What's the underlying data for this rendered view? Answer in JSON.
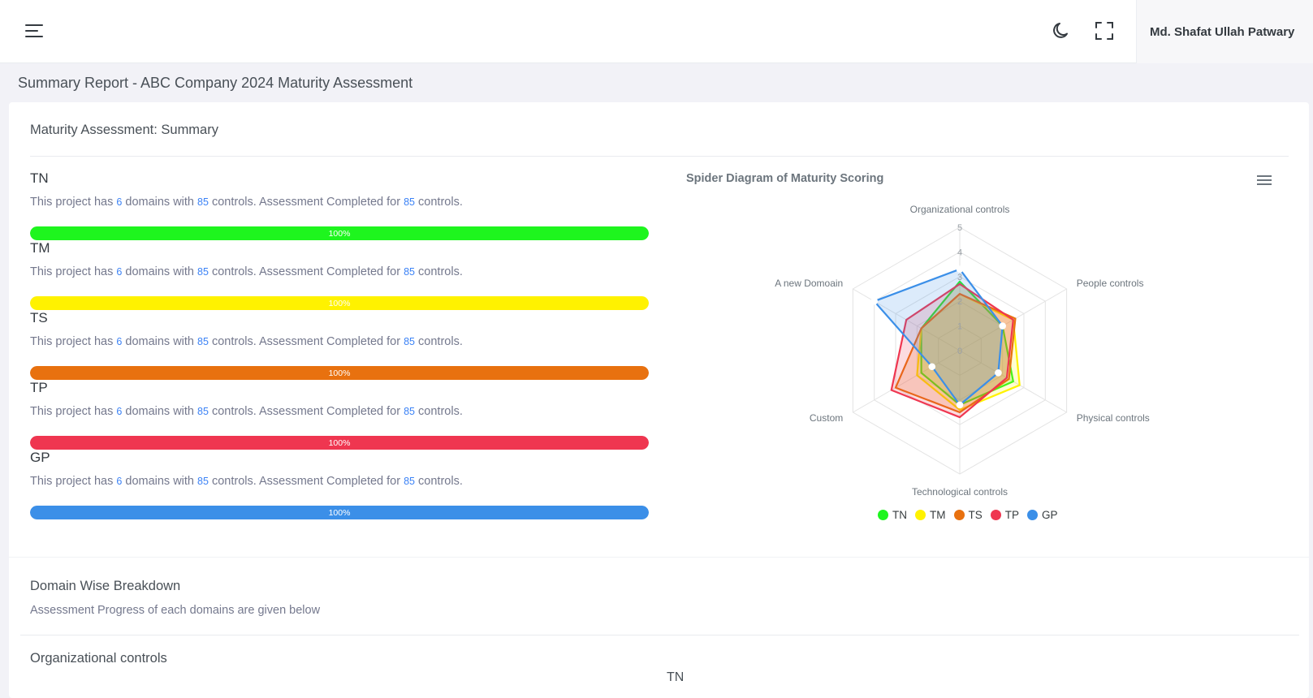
{
  "header": {
    "menu_icon": "hamburger-icon",
    "theme_icon": "moon-icon",
    "fullscreen_icon": "fullscreen-icon",
    "user_name": "Md. Shafat Ullah Patwary"
  },
  "page": {
    "title": "Summary Report - ABC Company 2024 Maturity Assessment"
  },
  "summary": {
    "card_title": "Maturity Assessment: Summary",
    "desc_prefix": "This project has",
    "desc_mid1": "domains with",
    "desc_mid2": "controls. Assessment Completed for",
    "desc_suffix": "controls.",
    "items": [
      {
        "code": "TN",
        "domains": "6",
        "controls": "85",
        "completed": "85",
        "progress": 100,
        "progress_label": "100%",
        "color": "#1ef51e"
      },
      {
        "code": "TM",
        "domains": "6",
        "controls": "85",
        "completed": "85",
        "progress": 100,
        "progress_label": "100%",
        "color": "#fff200"
      },
      {
        "code": "TS",
        "domains": "6",
        "controls": "85",
        "completed": "85",
        "progress": 100,
        "progress_label": "100%",
        "color": "#e8710f"
      },
      {
        "code": "TP",
        "domains": "6",
        "controls": "85",
        "completed": "85",
        "progress": 100,
        "progress_label": "100%",
        "color": "#ef3650"
      },
      {
        "code": "GP",
        "domains": "6",
        "controls": "85",
        "completed": "85",
        "progress": 100,
        "progress_label": "100%",
        "color": "#3b8fe8"
      }
    ]
  },
  "chart_title": "Spider Diagram of Maturity Scoring",
  "chart_menu_icon": "hamburger-icon",
  "chart_data": {
    "type": "radar",
    "title": "Spider Diagram of Maturity Scoring",
    "categories": [
      "Organizational controls",
      "People controls",
      "Physical controls",
      "Technological controls",
      "Custom",
      "A new Domoain"
    ],
    "scale_labels": [
      "0",
      "1",
      "2",
      "3",
      "4",
      "5"
    ],
    "ylim": [
      0,
      5
    ],
    "legend_position": "bottom",
    "series": [
      {
        "name": "TN",
        "color": "#1ef51e",
        "values": [
          2.8,
          2.0,
          2.5,
          2.2,
          1.8,
          1.8
        ]
      },
      {
        "name": "TM",
        "color": "#fff200",
        "values": [
          2.3,
          2.5,
          2.8,
          2.4,
          2.0,
          1.8
        ]
      },
      {
        "name": "TS",
        "color": "#e8710f",
        "values": [
          2.3,
          2.6,
          2.3,
          2.5,
          3.0,
          1.8
        ]
      },
      {
        "name": "TP",
        "color": "#ef3650",
        "values": [
          2.7,
          2.5,
          2.2,
          2.7,
          3.2,
          2.5
        ]
      },
      {
        "name": "GP",
        "color": "#3b8fe8",
        "values": [
          3.3,
          2.0,
          1.8,
          2.2,
          1.3,
          4.0
        ]
      }
    ]
  },
  "breakdown": {
    "title": "Domain Wise Breakdown",
    "subtitle": "Assessment Progress of each domains are given below",
    "first_domain": "Organizational controls",
    "next_label": "TN"
  }
}
